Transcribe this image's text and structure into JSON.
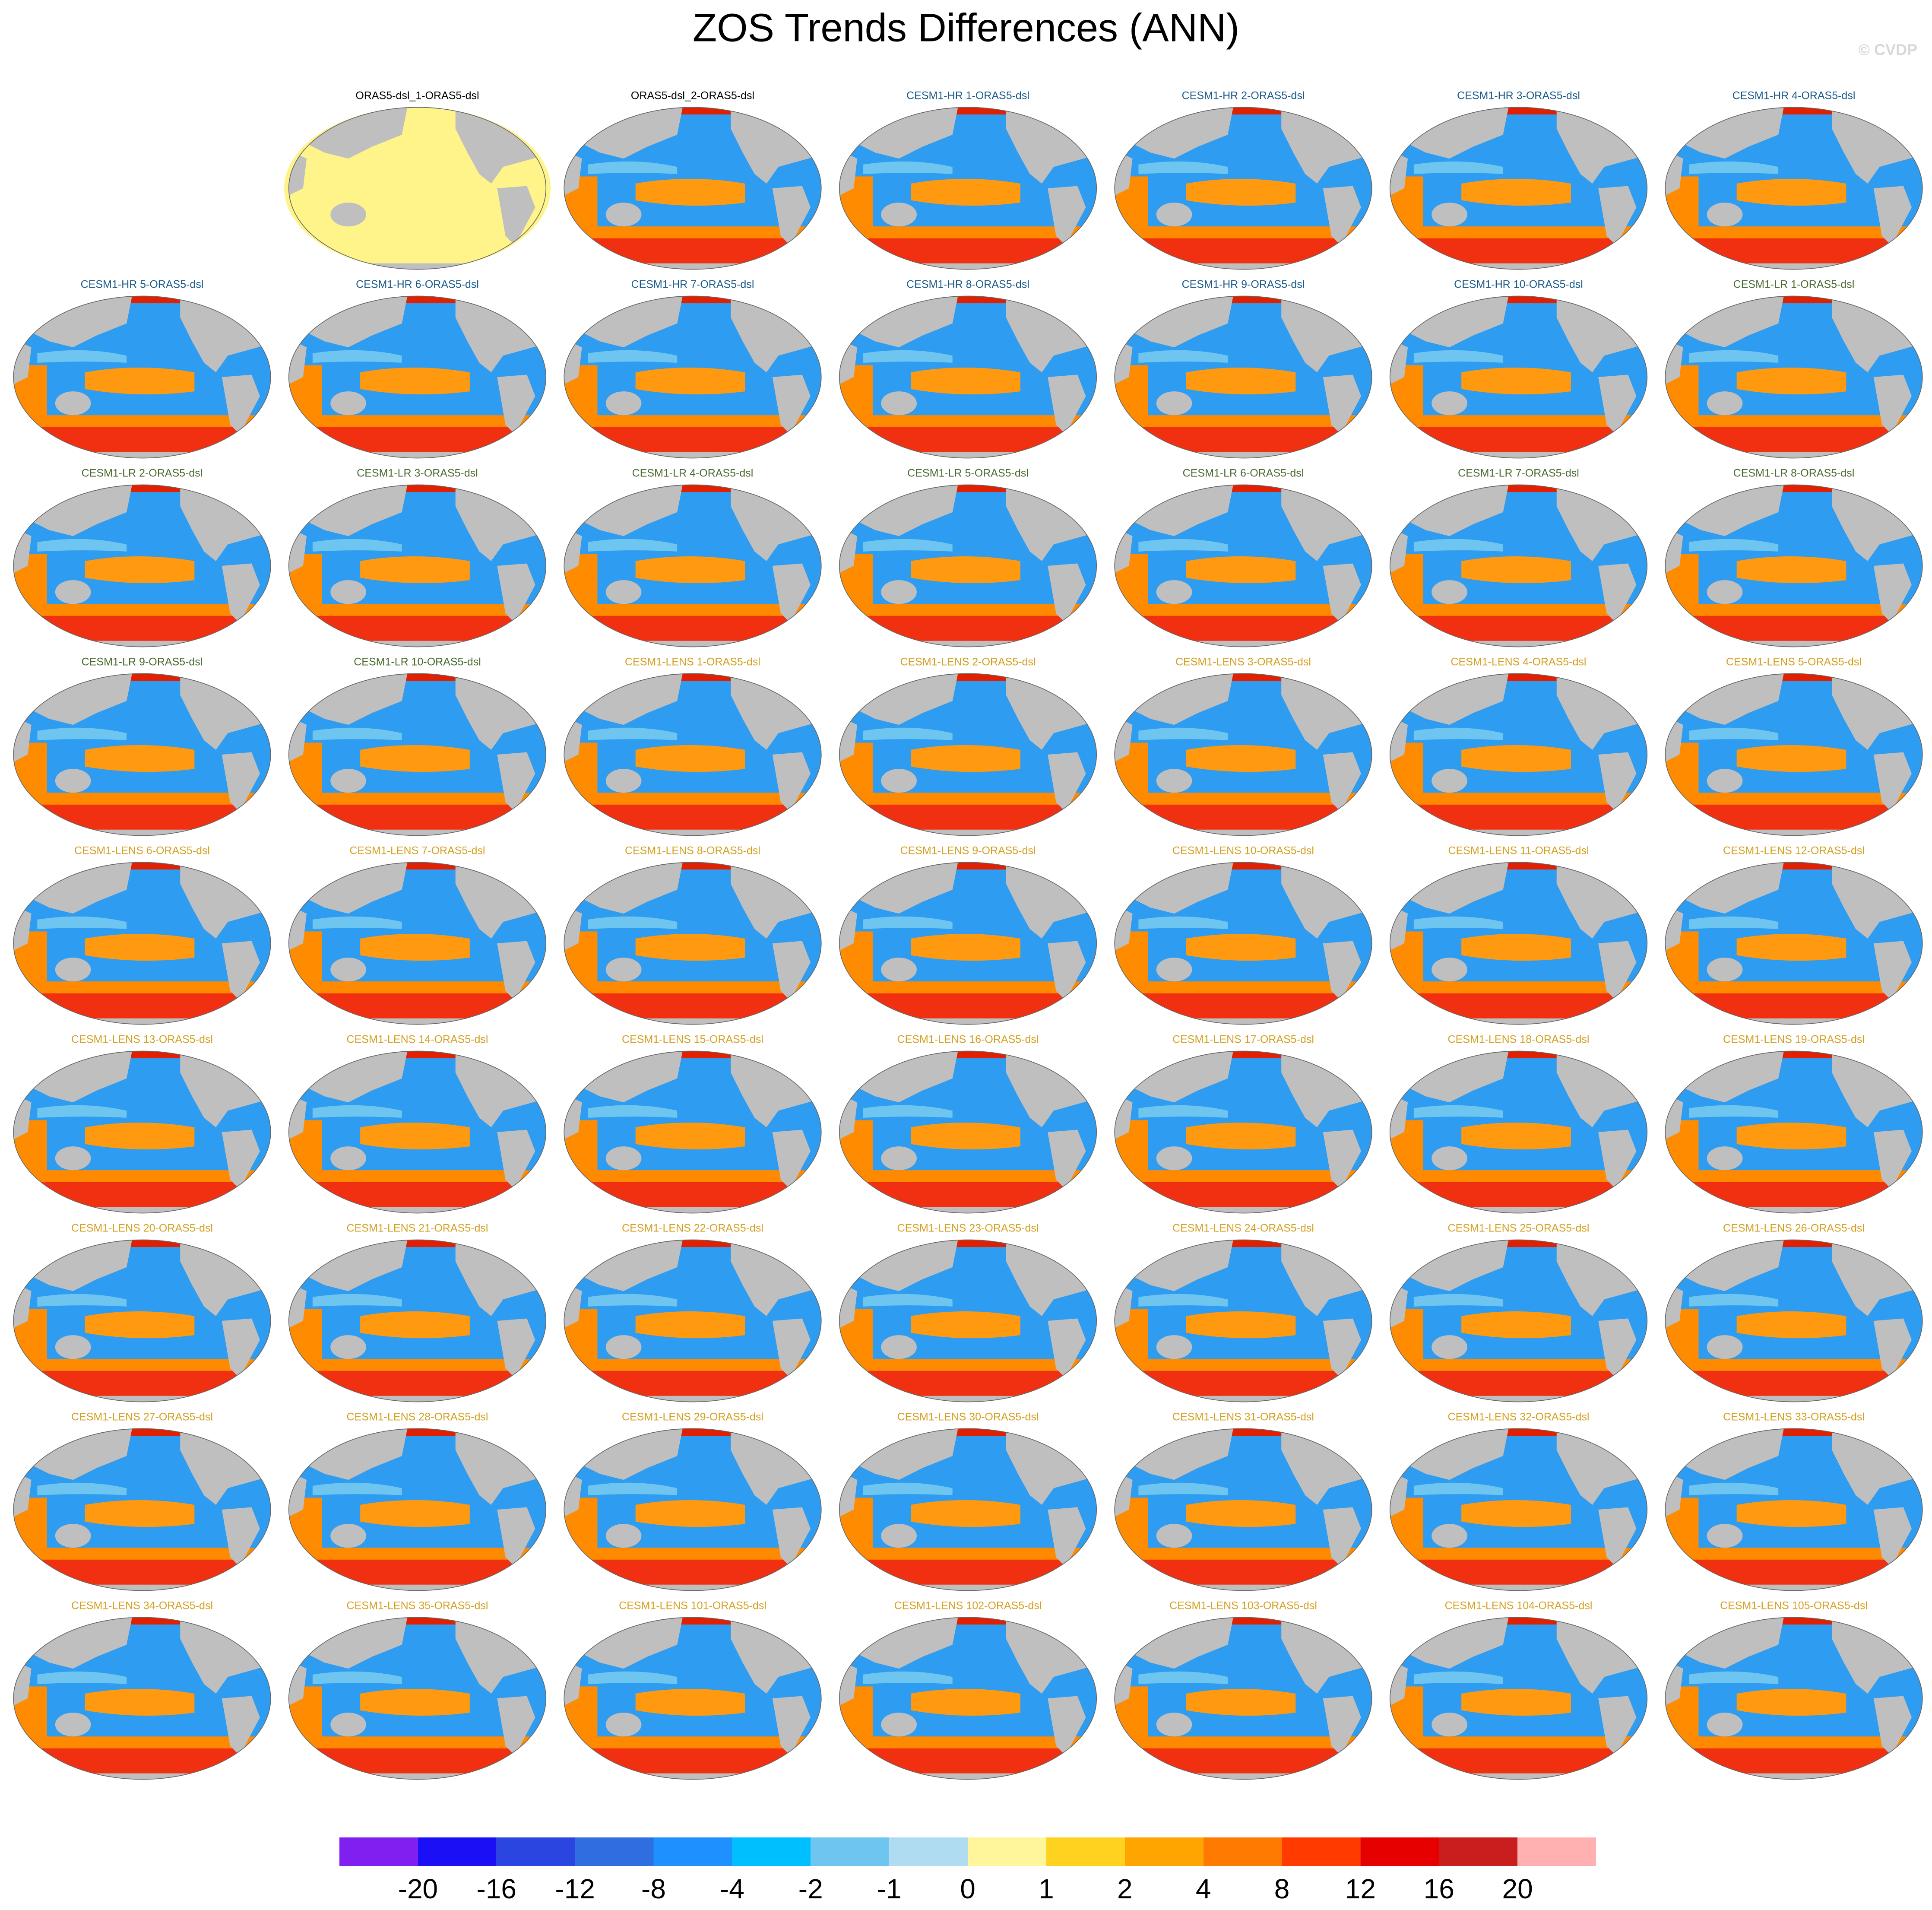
{
  "title": "ZOS Trends Differences (ANN)",
  "watermark": "© CVDP",
  "panels": [
    {
      "title": "ORAS5-dsl_1-ORAS5-dsl",
      "color": "#000000",
      "ocean": "#fff48a"
    },
    {
      "title": "ORAS5-dsl_2-ORAS5-dsl",
      "color": "#000000"
    },
    {
      "title": "CESM1-HR 1-ORAS5-dsl",
      "color": "#1a5a8a"
    },
    {
      "title": "CESM1-HR 2-ORAS5-dsl",
      "color": "#1a5a8a"
    },
    {
      "title": "CESM1-HR 3-ORAS5-dsl",
      "color": "#1a5a8a"
    },
    {
      "title": "CESM1-HR 4-ORAS5-dsl",
      "color": "#1a5a8a"
    },
    {
      "title": "CESM1-HR 5-ORAS5-dsl",
      "color": "#1a5a8a"
    },
    {
      "title": "CESM1-HR 6-ORAS5-dsl",
      "color": "#1a5a8a"
    },
    {
      "title": "CESM1-HR 7-ORAS5-dsl",
      "color": "#1a5a8a"
    },
    {
      "title": "CESM1-HR 8-ORAS5-dsl",
      "color": "#1a5a8a"
    },
    {
      "title": "CESM1-HR 9-ORAS5-dsl",
      "color": "#1a5a8a"
    },
    {
      "title": "CESM1-HR 10-ORAS5-dsl",
      "color": "#1a5a8a"
    },
    {
      "title": "CESM1-LR 1-ORAS5-dsl",
      "color": "#4a6a30"
    },
    {
      "title": "CESM1-LR 2-ORAS5-dsl",
      "color": "#4a6a30"
    },
    {
      "title": "CESM1-LR 3-ORAS5-dsl",
      "color": "#4a6a30"
    },
    {
      "title": "CESM1-LR 4-ORAS5-dsl",
      "color": "#4a6a30"
    },
    {
      "title": "CESM1-LR 5-ORAS5-dsl",
      "color": "#4a6a30"
    },
    {
      "title": "CESM1-LR 6-ORAS5-dsl",
      "color": "#4a6a30"
    },
    {
      "title": "CESM1-LR 7-ORAS5-dsl",
      "color": "#4a6a30"
    },
    {
      "title": "CESM1-LR 8-ORAS5-dsl",
      "color": "#4a6a30"
    },
    {
      "title": "CESM1-LR 9-ORAS5-dsl",
      "color": "#4a6a30"
    },
    {
      "title": "CESM1-LR 10-ORAS5-dsl",
      "color": "#4a6a30"
    },
    {
      "title": "CESM1-LENS 1-ORAS5-dsl",
      "color": "#d4a020"
    },
    {
      "title": "CESM1-LENS 2-ORAS5-dsl",
      "color": "#d4a020"
    },
    {
      "title": "CESM1-LENS 3-ORAS5-dsl",
      "color": "#d4a020"
    },
    {
      "title": "CESM1-LENS 4-ORAS5-dsl",
      "color": "#d4a020"
    },
    {
      "title": "CESM1-LENS 5-ORAS5-dsl",
      "color": "#d4a020"
    },
    {
      "title": "CESM1-LENS 6-ORAS5-dsl",
      "color": "#d4a020"
    },
    {
      "title": "CESM1-LENS 7-ORAS5-dsl",
      "color": "#d4a020"
    },
    {
      "title": "CESM1-LENS 8-ORAS5-dsl",
      "color": "#d4a020"
    },
    {
      "title": "CESM1-LENS 9-ORAS5-dsl",
      "color": "#d4a020"
    },
    {
      "title": "CESM1-LENS 10-ORAS5-dsl",
      "color": "#d4a020"
    },
    {
      "title": "CESM1-LENS 11-ORAS5-dsl",
      "color": "#d4a020"
    },
    {
      "title": "CESM1-LENS 12-ORAS5-dsl",
      "color": "#d4a020"
    },
    {
      "title": "CESM1-LENS 13-ORAS5-dsl",
      "color": "#d4a020"
    },
    {
      "title": "CESM1-LENS 14-ORAS5-dsl",
      "color": "#d4a020"
    },
    {
      "title": "CESM1-LENS 15-ORAS5-dsl",
      "color": "#d4a020"
    },
    {
      "title": "CESM1-LENS 16-ORAS5-dsl",
      "color": "#d4a020"
    },
    {
      "title": "CESM1-LENS 17-ORAS5-dsl",
      "color": "#d4a020"
    },
    {
      "title": "CESM1-LENS 18-ORAS5-dsl",
      "color": "#d4a020"
    },
    {
      "title": "CESM1-LENS 19-ORAS5-dsl",
      "color": "#d4a020"
    },
    {
      "title": "CESM1-LENS 20-ORAS5-dsl",
      "color": "#d4a020"
    },
    {
      "title": "CESM1-LENS 21-ORAS5-dsl",
      "color": "#d4a020"
    },
    {
      "title": "CESM1-LENS 22-ORAS5-dsl",
      "color": "#d4a020"
    },
    {
      "title": "CESM1-LENS 23-ORAS5-dsl",
      "color": "#d4a020"
    },
    {
      "title": "CESM1-LENS 24-ORAS5-dsl",
      "color": "#d4a020"
    },
    {
      "title": "CESM1-LENS 25-ORAS5-dsl",
      "color": "#d4a020"
    },
    {
      "title": "CESM1-LENS 26-ORAS5-dsl",
      "color": "#d4a020"
    },
    {
      "title": "CESM1-LENS 27-ORAS5-dsl",
      "color": "#d4a020"
    },
    {
      "title": "CESM1-LENS 28-ORAS5-dsl",
      "color": "#d4a020"
    },
    {
      "title": "CESM1-LENS 29-ORAS5-dsl",
      "color": "#d4a020"
    },
    {
      "title": "CESM1-LENS 30-ORAS5-dsl",
      "color": "#d4a020"
    },
    {
      "title": "CESM1-LENS 31-ORAS5-dsl",
      "color": "#d4a020"
    },
    {
      "title": "CESM1-LENS 32-ORAS5-dsl",
      "color": "#d4a020"
    },
    {
      "title": "CESM1-LENS 33-ORAS5-dsl",
      "color": "#d4a020"
    },
    {
      "title": "CESM1-LENS 34-ORAS5-dsl",
      "color": "#d4a020"
    },
    {
      "title": "CESM1-LENS 35-ORAS5-dsl",
      "color": "#d4a020"
    },
    {
      "title": "CESM1-LENS 101-ORAS5-dsl",
      "color": "#d4a020"
    },
    {
      "title": "CESM1-LENS 102-ORAS5-dsl",
      "color": "#d4a020"
    },
    {
      "title": "CESM1-LENS 103-ORAS5-dsl",
      "color": "#d4a020"
    },
    {
      "title": "CESM1-LENS 104-ORAS5-dsl",
      "color": "#d4a020"
    },
    {
      "title": "CESM1-LENS 105-ORAS5-dsl",
      "color": "#d4a020"
    }
  ],
  "colorbar": {
    "colors": [
      "#7f1ff0",
      "#1a0ff5",
      "#2b45e0",
      "#2e6ee0",
      "#1e90ff",
      "#00bfff",
      "#6ec6f0",
      "#b0dcf2",
      "#fff59a",
      "#ffd21f",
      "#ffa500",
      "#ff7a00",
      "#ff3b00",
      "#e60000",
      "#c81e1e",
      "#ffb0b0"
    ],
    "levels": [
      -20,
      -16,
      -12,
      -8,
      -4,
      -2,
      -1,
      0,
      1,
      2,
      4,
      8,
      12,
      16,
      20
    ]
  }
}
